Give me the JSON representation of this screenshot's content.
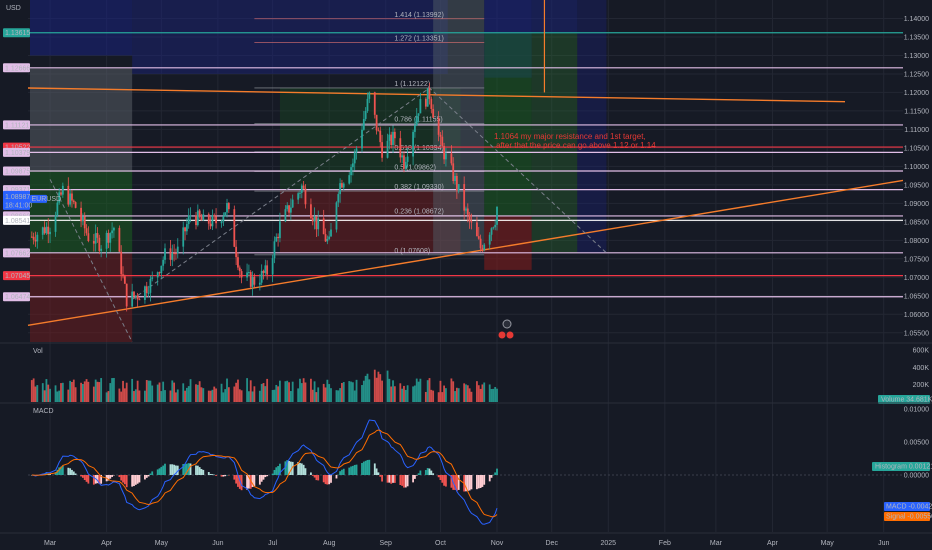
{
  "currency": "USD",
  "price_scale_ticks": [
    "1.14000",
    "1.13500",
    "1.13000",
    "1.12500",
    "1.12000",
    "1.11500",
    "1.11000",
    "1.10500",
    "1.10000",
    "1.09500",
    "1.09000",
    "1.08500",
    "1.08000",
    "1.07500",
    "1.07000",
    "1.06500",
    "1.06000",
    "1.05500"
  ],
  "horizontal_levels": [
    {
      "label": "1.13615",
      "price": 1.13615,
      "color": "#26a69a"
    },
    {
      "label": "1.12666",
      "price": 1.12666,
      "color": "#e1bee7"
    },
    {
      "label": "1.11121",
      "price": 1.11121,
      "color": "#e1bee7"
    },
    {
      "label": "1.10522",
      "price": 1.10522,
      "color": "#f23645"
    },
    {
      "label": "1.10379",
      "price": 1.10379,
      "color": "#e1bee7"
    },
    {
      "label": "1.09875",
      "price": 1.09875,
      "color": "#e1bee7"
    },
    {
      "label": "1.09371",
      "price": 1.09371,
      "color": "#e1bee7"
    },
    {
      "label": "1.08660",
      "price": 1.0866,
      "color": "#e1bee7"
    },
    {
      "label": "1.08541",
      "price": 1.08541,
      "color": "#ffffff"
    },
    {
      "label": "1.07662",
      "price": 1.07662,
      "color": "#e1bee7"
    },
    {
      "label": "1.07045",
      "price": 1.07045,
      "color": "#f23645"
    },
    {
      "label": "1.06474",
      "price": 1.06474,
      "color": "#e1bee7"
    }
  ],
  "current_price": {
    "symbol": "EURUSD",
    "price": "1.08987",
    "countdown": "18:41:00",
    "color": "#2962ff"
  },
  "fib_levels": [
    {
      "label": "1.414 (1.13992)",
      "price": 1.13992
    },
    {
      "label": "1.272 (1.13351)",
      "price": 1.13351
    },
    {
      "label": "1 (1.12122)",
      "price": 1.12122
    },
    {
      "label": "0.786 (1.11155)",
      "price": 1.11155
    },
    {
      "label": "0.618 (1.10394)",
      "price": 1.10394
    },
    {
      "label": "0.5 (1.09862)",
      "price": 1.09862
    },
    {
      "label": "0.382 (1.09330)",
      "price": 1.0933
    },
    {
      "label": "0.236 (1.08672)",
      "price": 1.08672
    },
    {
      "label": "0 (1.07608)",
      "price": 1.07608
    }
  ],
  "annotation": {
    "line1": "1.1064 my major resistance and 1st target,",
    "line2": "after that the price can go above 1.12 or 1.14"
  },
  "time_axis": [
    "Mar",
    "Apr",
    "May",
    "Jun",
    "Jul",
    "Aug",
    "Sep",
    "Oct",
    "Nov",
    "Dec",
    "2025",
    "Feb",
    "Mar",
    "Apr",
    "May",
    "Jun"
  ],
  "volume_pane": {
    "title": "Vol",
    "scale": [
      "600K",
      "400K",
      "200K"
    ],
    "badge_label": "Volume",
    "badge_value": "34.681K"
  },
  "macd_pane": {
    "title": "MACD",
    "scale": [
      "0.01000",
      "0.00500",
      "0.00000"
    ],
    "histogram_label": "Histogram",
    "histogram_value": "0.00121",
    "macd_label": "MACD",
    "macd_value": "-0.00429",
    "signal_label": "Signal",
    "signal_value": "-0.00550"
  },
  "colors": {
    "up": "#26a69a",
    "down": "#ef5350",
    "trend": "#f57c2b",
    "macd": "#2962ff",
    "signal": "#ff6d00",
    "background": "#161a25",
    "grid": "#232733"
  },
  "chart_data": {
    "type": "candlestick",
    "symbol": "EURUSD",
    "timeframe": "daily",
    "close_path": [
      [
        "2024-02-20",
        1.081
      ],
      [
        "2024-03-01",
        1.084
      ],
      [
        "2024-03-08",
        1.0935
      ],
      [
        "2024-03-15",
        1.089
      ],
      [
        "2024-03-22",
        1.081
      ],
      [
        "2024-03-29",
        1.079
      ],
      [
        "2024-04-05",
        1.0835
      ],
      [
        "2024-04-12",
        1.064
      ],
      [
        "2024-04-19",
        1.0655
      ],
      [
        "2024-04-26",
        1.069
      ],
      [
        "2024-05-03",
        1.076
      ],
      [
        "2024-05-10",
        1.077
      ],
      [
        "2024-05-17",
        1.087
      ],
      [
        "2024-05-24",
        1.085
      ],
      [
        "2024-05-31",
        1.085
      ],
      [
        "2024-06-06",
        1.089
      ],
      [
        "2024-06-14",
        1.07
      ],
      [
        "2024-06-21",
        1.069
      ],
      [
        "2024-06-28",
        1.0715
      ],
      [
        "2024-07-05",
        1.084
      ],
      [
        "2024-07-12",
        1.0905
      ],
      [
        "2024-07-17",
        1.0945
      ],
      [
        "2024-07-25",
        1.0845
      ],
      [
        "2024-08-01",
        1.079
      ],
      [
        "2024-08-06",
        1.0945
      ],
      [
        "2024-08-14",
        1.101
      ],
      [
        "2024-08-23",
        1.119
      ],
      [
        "2024-08-30",
        1.1045
      ],
      [
        "2024-09-06",
        1.108
      ],
      [
        "2024-09-11",
        1.1012
      ],
      [
        "2024-09-19",
        1.116
      ],
      [
        "2024-09-25",
        1.1195
      ],
      [
        "2024-10-01",
        1.106
      ],
      [
        "2024-10-08",
        1.0975
      ],
      [
        "2024-10-16",
        1.086
      ],
      [
        "2024-10-23",
        1.078
      ],
      [
        "2024-10-31",
        1.086
      ],
      [
        "2024-11-01",
        1.089
      ]
    ],
    "levels": [
      1.13615,
      1.12666,
      1.11121,
      1.10522,
      1.10379,
      1.09875,
      1.09371,
      1.0866,
      1.07662,
      1.07045,
      1.06474
    ],
    "ylim": [
      1.0525,
      1.145
    ]
  }
}
